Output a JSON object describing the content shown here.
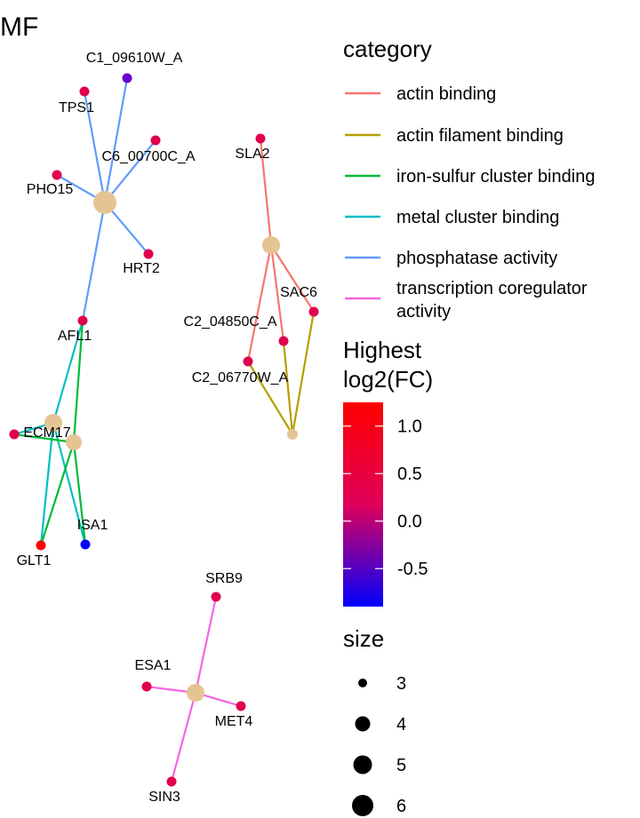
{
  "title": "MF",
  "category_legend": {
    "title": "category",
    "items": [
      {
        "label": "actin binding",
        "color": "#F8766D"
      },
      {
        "label": "actin filament binding",
        "color": "#B79F00"
      },
      {
        "label": "iron-sulfur cluster binding",
        "color": "#00BA38"
      },
      {
        "label": "metal cluster binding",
        "color": "#00BFC4"
      },
      {
        "label": "phosphatase activity",
        "color": "#619CFF"
      },
      {
        "label": "transcription coregulator activity",
        "color": "#F564E3"
      }
    ]
  },
  "color_legend": {
    "title_line1": "Highest",
    "title_line2": "log2(FC)",
    "low_color": "#0000FF",
    "mid_color": "#E0005A",
    "high_color": "#FF0000",
    "range": [
      -0.9,
      1.25
    ],
    "ticks": [
      "1.0",
      "0.5",
      "0.0",
      "-0.5"
    ]
  },
  "size_legend": {
    "title": "size",
    "items": [
      "3",
      "4",
      "5",
      "6"
    ]
  },
  "node_color": "#E5C494",
  "genes": [
    "C1_09610W_A",
    "TPS1",
    "C6_00700C_A",
    "PHO15",
    "HRT2",
    "AFL1",
    "ECM17",
    "ISA1",
    "GLT1",
    "SLA2",
    "SAC6",
    "C2_04850C_A",
    "C2_06770W_A",
    "SRB9",
    "ESA1",
    "MET4",
    "SIN3"
  ],
  "gene_colors": {
    "C1_09610W_A": "#6A00D0",
    "TPS1": "#E0004E",
    "C6_00700C_A": "#E0004E",
    "PHO15": "#E0004E",
    "HRT2": "#E0004E",
    "AFL1": "#E0004E",
    "ECM17": "#E0004E",
    "ISA1": "#0000FF",
    "GLT1": "#FF0000",
    "SLA2": "#E0004E",
    "SAC6": "#E0004E",
    "C2_04850C_A": "#E0004E",
    "C2_06770W_A": "#E0004E",
    "SRB9": "#E0004E",
    "ESA1": "#E0004E",
    "MET4": "#E0004E",
    "SIN3": "#E0004E"
  }
}
